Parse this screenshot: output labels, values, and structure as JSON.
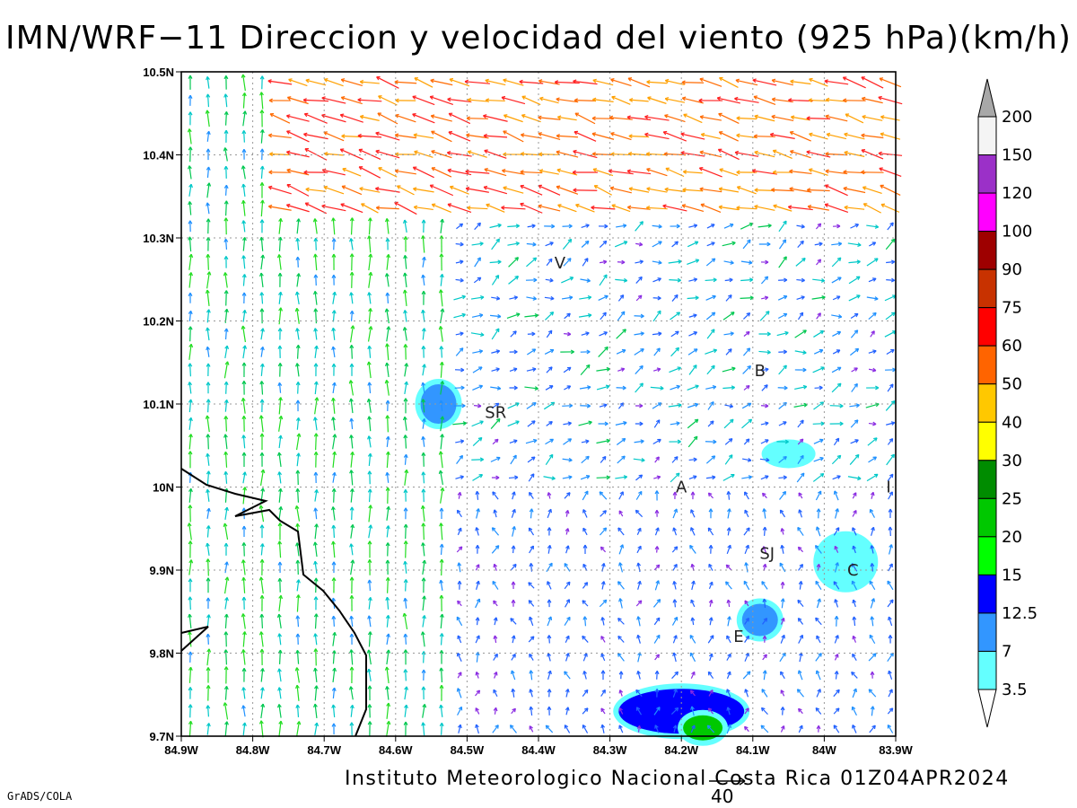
{
  "title": "IMN/WRF−11 Direccion y velocidad del viento (925 hPa)(km/h)",
  "credit": "Instituto Meteorologico Nacional Costa Rica 01Z04APR2024",
  "footer": "GrADS/COLA",
  "reference_vector": "40",
  "axes": {
    "lat_ticks": [
      "10.5N",
      "10.4N",
      "10.3N",
      "10.2N",
      "10.1N",
      "10N",
      "9.9N",
      "9.8N",
      "9.7N"
    ],
    "lon_ticks": [
      "84.9W",
      "84.8W",
      "84.7W",
      "84.6W",
      "84.5W",
      "84.4W",
      "84.3W",
      "84.2W",
      "84.1W",
      "84W",
      "83.9W"
    ],
    "lat_range": [
      9.7,
      10.5
    ],
    "lon_range": [
      -84.9,
      -83.9
    ]
  },
  "colorbar": {
    "labels": [
      "200",
      "150",
      "120",
      "100",
      "90",
      "75",
      "60",
      "50",
      "40",
      "30",
      "25",
      "20",
      "15",
      "12.5",
      "7",
      "3.5"
    ],
    "colors": [
      "#f4f4f4",
      "#9b30c8",
      "#ff00ff",
      "#9e0000",
      "#c83200",
      "#ff0000",
      "#ff6400",
      "#ffc800",
      "#ffff00",
      "#008c00",
      "#00c800",
      "#00ff00",
      "#0000ff",
      "#3296ff",
      "#64ffff"
    ],
    "top_arrow": "#a8a8a8"
  },
  "cities": [
    {
      "code": "V",
      "lon": -84.37,
      "lat": 10.27
    },
    {
      "code": "SR",
      "lon": -84.46,
      "lat": 10.09
    },
    {
      "code": "B",
      "lon": -84.09,
      "lat": 10.14
    },
    {
      "code": "A",
      "lon": -84.2,
      "lat": 10.0
    },
    {
      "code": "I",
      "lon": -83.91,
      "lat": 10.0
    },
    {
      "code": "SJ",
      "lon": -84.08,
      "lat": 9.92
    },
    {
      "code": "C",
      "lon": -83.96,
      "lat": 9.9
    },
    {
      "code": "E",
      "lon": -84.12,
      "lat": 9.82
    }
  ],
  "chart_data": {
    "type": "heatmap",
    "variable": "wind speed 925 hPa (km/h)",
    "vector_field": "wind direction arrows, colored by speed",
    "shaded_areas": [
      {
        "lon": -84.54,
        "lat": 10.1,
        "level": "7"
      },
      {
        "lon": -84.05,
        "lat": 10.04,
        "level": "3.5"
      },
      {
        "lon": -83.97,
        "lat": 9.91,
        "level": "3.5"
      },
      {
        "lon": -84.09,
        "lat": 9.84,
        "level": "7"
      },
      {
        "lon": -84.2,
        "lat": 9.73,
        "level": "12.5"
      },
      {
        "lon": -84.17,
        "lat": 9.71,
        "level": "20"
      }
    ]
  }
}
